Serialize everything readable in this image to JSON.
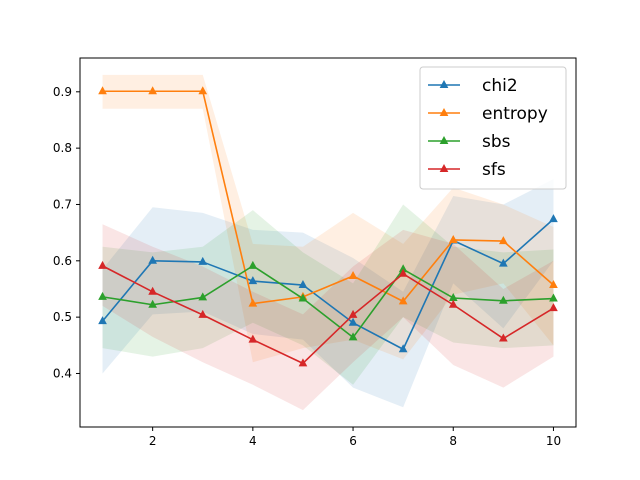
{
  "chart_data": {
    "type": "line",
    "title": "",
    "xlabel": "",
    "ylabel": "",
    "xlim": [
      0.55,
      10.45
    ],
    "ylim": [
      0.305,
      0.96
    ],
    "x_ticks": [
      2,
      4,
      6,
      8,
      10
    ],
    "y_ticks": [
      0.4,
      0.5,
      0.6,
      0.7,
      0.8,
      0.9
    ],
    "x_tick_labels": [
      "2",
      "4",
      "6",
      "8",
      "10"
    ],
    "y_tick_labels": [
      "0.4",
      "0.5",
      "0.6",
      "0.7",
      "0.8",
      "0.9"
    ],
    "grid": false,
    "legend_position": "top-right",
    "marker": "triangle",
    "x": [
      1,
      2,
      3,
      4,
      5,
      6,
      7,
      8,
      9,
      10
    ],
    "series": [
      {
        "name": "chi2",
        "color": "#1f77b4",
        "values": [
          0.493,
          0.6,
          0.598,
          0.564,
          0.557,
          0.49,
          0.443,
          0.636,
          0.595,
          0.674
        ],
        "band_lower": [
          0.4,
          0.505,
          0.51,
          0.47,
          0.46,
          0.375,
          0.34,
          0.56,
          0.48,
          0.6
        ],
        "band_upper": [
          0.585,
          0.695,
          0.685,
          0.655,
          0.65,
          0.605,
          0.545,
          0.715,
          0.7,
          0.745
        ]
      },
      {
        "name": "entropy",
        "color": "#ff7f0e",
        "values": [
          0.901,
          0.901,
          0.901,
          0.524,
          0.536,
          0.573,
          0.528,
          0.637,
          0.635,
          0.557
        ],
        "band_lower": [
          0.87,
          0.87,
          0.87,
          0.42,
          0.445,
          0.46,
          0.425,
          0.54,
          0.56,
          0.45
        ],
        "band_upper": [
          0.93,
          0.93,
          0.93,
          0.63,
          0.625,
          0.685,
          0.63,
          0.73,
          0.7,
          0.66
        ]
      },
      {
        "name": "sbs",
        "color": "#2ca02c",
        "values": [
          0.536,
          0.522,
          0.535,
          0.591,
          0.533,
          0.464,
          0.585,
          0.534,
          0.529,
          0.533
        ],
        "band_lower": [
          0.445,
          0.43,
          0.445,
          0.49,
          0.45,
          0.38,
          0.5,
          0.455,
          0.445,
          0.45
        ],
        "band_upper": [
          0.625,
          0.615,
          0.625,
          0.69,
          0.615,
          0.56,
          0.7,
          0.625,
          0.615,
          0.62
        ]
      },
      {
        "name": "sfs",
        "color": "#d62728",
        "values": [
          0.591,
          0.545,
          0.504,
          0.46,
          0.418,
          0.504,
          0.577,
          0.522,
          0.462,
          0.516
        ],
        "band_lower": [
          0.52,
          0.465,
          0.42,
          0.38,
          0.335,
          0.42,
          0.5,
          0.415,
          0.375,
          0.43
        ],
        "band_upper": [
          0.665,
          0.625,
          0.59,
          0.545,
          0.505,
          0.59,
          0.655,
          0.63,
          0.55,
          0.6
        ]
      }
    ]
  }
}
